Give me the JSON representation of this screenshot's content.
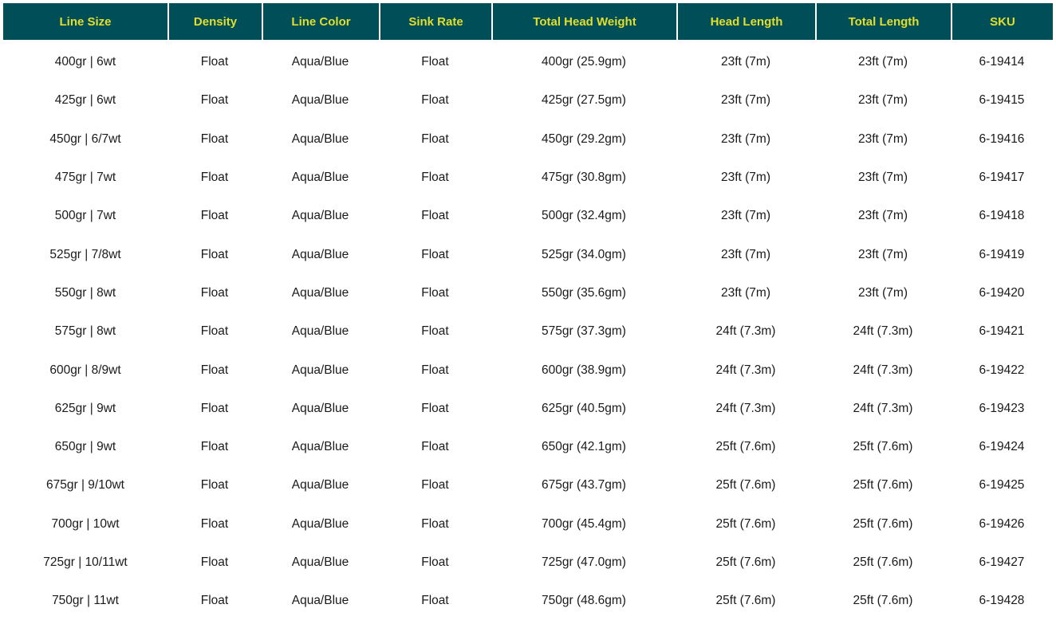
{
  "colors": {
    "header_bg": "#004e57",
    "header_text": "#e3de2b",
    "body_text": "#1a1a1a"
  },
  "table": {
    "headers": [
      "Line Size",
      "Density",
      "Line Color",
      "Sink Rate",
      "Total Head Weight",
      "Head Length",
      "Total Length",
      "SKU"
    ],
    "rows": [
      [
        "400gr | 6wt",
        "Float",
        "Aqua/Blue",
        "Float",
        "400gr (25.9gm)",
        "23ft (7m)",
        "23ft (7m)",
        "6-19414"
      ],
      [
        "425gr | 6wt",
        "Float",
        "Aqua/Blue",
        "Float",
        "425gr (27.5gm)",
        "23ft (7m)",
        "23ft (7m)",
        "6-19415"
      ],
      [
        "450gr | 6/7wt",
        "Float",
        "Aqua/Blue",
        "Float",
        "450gr (29.2gm)",
        "23ft (7m)",
        "23ft (7m)",
        "6-19416"
      ],
      [
        "475gr | 7wt",
        "Float",
        "Aqua/Blue",
        "Float",
        "475gr (30.8gm)",
        "23ft (7m)",
        "23ft (7m)",
        "6-19417"
      ],
      [
        "500gr | 7wt",
        "Float",
        "Aqua/Blue",
        "Float",
        "500gr (32.4gm)",
        "23ft (7m)",
        "23ft (7m)",
        "6-19418"
      ],
      [
        "525gr | 7/8wt",
        "Float",
        "Aqua/Blue",
        "Float",
        "525gr (34.0gm)",
        "23ft (7m)",
        "23ft (7m)",
        "6-19419"
      ],
      [
        "550gr | 8wt",
        "Float",
        "Aqua/Blue",
        "Float",
        "550gr (35.6gm)",
        "23ft (7m)",
        "23ft (7m)",
        "6-19420"
      ],
      [
        "575gr | 8wt",
        "Float",
        "Aqua/Blue",
        "Float",
        "575gr (37.3gm)",
        "24ft (7.3m)",
        "24ft (7.3m)",
        "6-19421"
      ],
      [
        "600gr | 8/9wt",
        "Float",
        "Aqua/Blue",
        "Float",
        "600gr (38.9gm)",
        "24ft (7.3m)",
        "24ft (7.3m)",
        "6-19422"
      ],
      [
        "625gr | 9wt",
        "Float",
        "Aqua/Blue",
        "Float",
        "625gr (40.5gm)",
        "24ft (7.3m)",
        "24ft (7.3m)",
        "6-19423"
      ],
      [
        "650gr | 9wt",
        "Float",
        "Aqua/Blue",
        "Float",
        "650gr (42.1gm)",
        "25ft (7.6m)",
        "25ft (7.6m)",
        "6-19424"
      ],
      [
        "675gr | 9/10wt",
        "Float",
        "Aqua/Blue",
        "Float",
        "675gr (43.7gm)",
        "25ft (7.6m)",
        "25ft (7.6m)",
        "6-19425"
      ],
      [
        "700gr | 10wt",
        "Float",
        "Aqua/Blue",
        "Float",
        "700gr (45.4gm)",
        "25ft (7.6m)",
        "25ft (7.6m)",
        "6-19426"
      ],
      [
        "725gr | 10/11wt",
        "Float",
        "Aqua/Blue",
        "Float",
        "725gr (47.0gm)",
        "25ft (7.6m)",
        "25ft (7.6m)",
        "6-19427"
      ],
      [
        "750gr | 11wt",
        "Float",
        "Aqua/Blue",
        "Float",
        "750gr (48.6gm)",
        "25ft (7.6m)",
        "25ft (7.6m)",
        "6-19428"
      ]
    ]
  }
}
